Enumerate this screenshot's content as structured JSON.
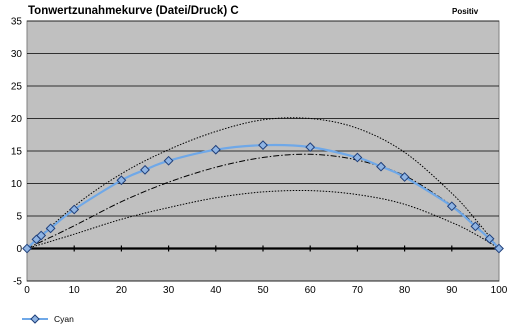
{
  "chart_data": {
    "type": "line",
    "title": "Tonwertzunahmekurve (Datei/Druck) C",
    "corner_label": "Positiv",
    "xlabel": "",
    "ylabel": "",
    "xlim": [
      0,
      100
    ],
    "ylim": [
      -5,
      35
    ],
    "x_ticks": [
      0,
      10,
      20,
      30,
      40,
      50,
      60,
      70,
      80,
      90,
      100
    ],
    "y_ticks": [
      -5,
      0,
      5,
      10,
      15,
      20,
      25,
      30,
      35
    ],
    "grid": true,
    "legend_position": "bottom-left",
    "series": [
      {
        "name": "Cyan",
        "color": "#6fa8e8",
        "marker_fill": "#8fb4e3",
        "marker_stroke": "#1f3f7a",
        "x": [
          0,
          2,
          3,
          5,
          10,
          20,
          25,
          30,
          40,
          50,
          60,
          70,
          75,
          80,
          90,
          95,
          98,
          100
        ],
        "y": [
          0,
          1.4,
          2.0,
          3.1,
          6.0,
          10.5,
          12.1,
          13.5,
          15.2,
          15.9,
          15.6,
          14.0,
          12.6,
          11.0,
          6.5,
          3.4,
          1.5,
          0
        ]
      }
    ],
    "reference_curves": [
      {
        "style": "dotted",
        "x": [
          0,
          10,
          20,
          30,
          40,
          50,
          60,
          70,
          80,
          90,
          95,
          100
        ],
        "y": [
          0,
          6.5,
          11.5,
          15.2,
          18.0,
          19.8,
          20.0,
          18.5,
          14.8,
          8.5,
          4.5,
          0
        ]
      },
      {
        "style": "dashdot",
        "x": [
          0,
          10,
          20,
          30,
          40,
          50,
          60,
          70,
          80,
          90,
          95,
          100
        ],
        "y": [
          0,
          3.5,
          7.2,
          10.2,
          12.5,
          14.0,
          14.5,
          13.6,
          11.2,
          6.6,
          3.6,
          0
        ]
      },
      {
        "style": "dotted",
        "x": [
          0,
          10,
          20,
          30,
          40,
          50,
          60,
          70,
          80,
          90,
          95,
          100
        ],
        "y": [
          0,
          2.2,
          4.5,
          6.3,
          7.8,
          8.7,
          8.9,
          8.3,
          6.8,
          4.0,
          2.2,
          0
        ]
      }
    ]
  }
}
